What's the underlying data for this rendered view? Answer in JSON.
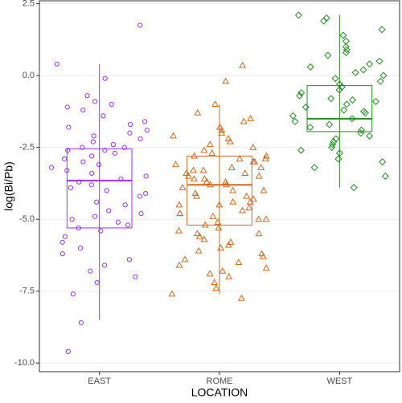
{
  "chart_data": {
    "type": "box_jitter",
    "y_label": "log(Bi/Pb)",
    "x_label": "LOCATION",
    "categories": [
      "EAST",
      "ROME",
      "WEST"
    ],
    "ylim": [
      -10.3,
      2.6
    ],
    "yticks": [
      2.5,
      {
        "value": 0,
        "label": "0.0"
      },
      -2.5,
      {
        "value": -5,
        "label": "-5.0"
      },
      -7.5,
      {
        "value": -10,
        "label": "-10.0"
      }
    ],
    "grid": true,
    "series": [
      {
        "name": "EAST",
        "color": "#9b30ff",
        "shape": "circle",
        "box": {
          "min": -8.5,
          "q1": -5.3,
          "median": -3.65,
          "q3": -2.55,
          "max": 0.4
        },
        "values": [
          1.75,
          0.4,
          -0.1,
          -0.7,
          -0.9,
          -1.0,
          -1.1,
          -1.2,
          -1.4,
          -1.6,
          -1.7,
          -1.8,
          -1.9,
          -2.0,
          -2.1,
          -2.2,
          -2.3,
          -2.4,
          -2.5,
          -2.5,
          -2.6,
          -2.7,
          -2.8,
          -2.9,
          -3.0,
          -3.1,
          -3.2,
          -3.3,
          -3.4,
          -3.5,
          -3.6,
          -3.7,
          -3.8,
          -3.9,
          -4.0,
          -4.1,
          -4.2,
          -4.4,
          -4.5,
          -4.7,
          -4.8,
          -4.9,
          -5.0,
          -5.1,
          -5.2,
          -5.3,
          -5.4,
          -5.6,
          -5.8,
          -6.0,
          -6.2,
          -6.4,
          -6.6,
          -6.8,
          -7.0,
          -7.2,
          -7.6,
          -8.6,
          -9.6,
          -2.6
        ]
      },
      {
        "name": "ROME",
        "color": "#d2691e",
        "shape": "triangle",
        "box": {
          "min": -7.6,
          "q1": -5.2,
          "median": -3.8,
          "q3": -2.8,
          "max": -1.0
        },
        "values": [
          0.35,
          -0.2,
          -1.0,
          -1.3,
          -1.5,
          -1.6,
          -1.8,
          -1.9,
          -2.0,
          -2.1,
          -2.2,
          -2.3,
          -2.4,
          -2.5,
          -2.6,
          -2.7,
          -2.8,
          -2.8,
          -2.9,
          -3.0,
          -3.0,
          -3.1,
          -3.2,
          -3.2,
          -3.3,
          -3.4,
          -3.4,
          -3.5,
          -3.5,
          -3.6,
          -3.7,
          -3.7,
          -3.8,
          -3.8,
          -3.9,
          -4.0,
          -4.0,
          -4.1,
          -4.2,
          -4.2,
          -4.3,
          -4.4,
          -4.5,
          -4.5,
          -4.6,
          -4.7,
          -4.8,
          -4.9,
          -5.0,
          -5.0,
          -5.1,
          -5.2,
          -5.3,
          -5.4,
          -5.5,
          -5.6,
          -5.7,
          -5.8,
          -5.9,
          -6.0,
          -6.1,
          -6.2,
          -6.3,
          -6.4,
          -6.5,
          -6.6,
          -6.7,
          -6.8,
          -6.9,
          -7.0,
          -7.2,
          -7.4,
          -7.6,
          -7.75,
          -3.3,
          -3.6,
          -4.4,
          -2.9,
          -5.5,
          -4.8
        ]
      },
      {
        "name": "WEST",
        "color": "#228b22",
        "shape": "diamond",
        "box": {
          "min": -3.9,
          "q1": -1.95,
          "median": -1.5,
          "q3": -0.35,
          "max": 2.1
        },
        "values": [
          2.1,
          2.0,
          1.9,
          1.6,
          1.4,
          1.2,
          1.0,
          0.9,
          0.8,
          0.7,
          0.5,
          0.4,
          0.3,
          0.2,
          0.1,
          0.0,
          -0.1,
          -0.2,
          -0.3,
          -0.4,
          -0.5,
          -0.6,
          -0.7,
          -0.8,
          -0.9,
          -1.0,
          -1.1,
          -1.2,
          -1.3,
          -1.4,
          -1.5,
          -1.6,
          -1.7,
          -1.8,
          -1.9,
          -2.0,
          -2.1,
          -2.2,
          -2.3,
          -2.4,
          -2.5,
          -2.6,
          -2.7,
          -2.9,
          -3.0,
          -3.2,
          -3.5,
          -3.9,
          -1.25,
          -0.85
        ]
      }
    ]
  }
}
